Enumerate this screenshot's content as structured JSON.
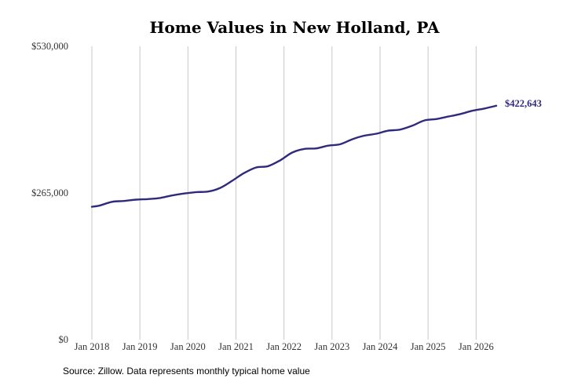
{
  "chart_data": {
    "type": "line",
    "title": "Home Values in New Holland, PA",
    "xlabel": "",
    "ylabel": "",
    "ylim": [
      0,
      530000
    ],
    "y_ticks": [
      {
        "value": 0,
        "label": "$0"
      },
      {
        "value": 265000,
        "label": "$265,000"
      },
      {
        "value": 530000,
        "label": "$530,000"
      }
    ],
    "x_ticks": [
      {
        "value": 2018.0,
        "label": "Jan 2018"
      },
      {
        "value": 2019.0,
        "label": "Jan 2019"
      },
      {
        "value": 2020.0,
        "label": "Jan 2020"
      },
      {
        "value": 2021.0,
        "label": "Jan 2021"
      },
      {
        "value": 2022.0,
        "label": "Jan 2022"
      },
      {
        "value": 2023.0,
        "label": "Jan 2023"
      },
      {
        "value": 2024.0,
        "label": "Jan 2024"
      },
      {
        "value": 2025.0,
        "label": "Jan 2025"
      },
      {
        "value": 2026.0,
        "label": "Jan 2026"
      }
    ],
    "xlim": [
      2018.0,
      2026.42
    ],
    "grid": "vertical",
    "series": [
      {
        "color": "#2e2a7c",
        "x": [
          2018.0,
          2018.17,
          2018.42,
          2018.67,
          2018.92,
          2019.17,
          2019.42,
          2019.67,
          2019.92,
          2020.17,
          2020.42,
          2020.67,
          2020.92,
          2021.17,
          2021.42,
          2021.67,
          2021.92,
          2022.17,
          2022.42,
          2022.67,
          2022.92,
          2023.17,
          2023.42,
          2023.67,
          2023.92,
          2024.17,
          2024.42,
          2024.67,
          2024.92,
          2025.17,
          2025.42,
          2025.67,
          2025.92,
          2026.17,
          2026.42
        ],
        "y": [
          240000,
          242500,
          249000,
          250500,
          253000,
          254000,
          256000,
          260500,
          264000,
          266500,
          267500,
          274000,
          287000,
          301000,
          311000,
          313500,
          324000,
          338000,
          344500,
          345500,
          350500,
          353000,
          362000,
          368500,
          372000,
          377500,
          379500,
          386500,
          396000,
          398500,
          403000,
          407500,
          413500,
          417500,
          422643
        ]
      }
    ],
    "end_label": "$422,643",
    "source": "Source: Zillow. Data represents monthly typical home value"
  }
}
